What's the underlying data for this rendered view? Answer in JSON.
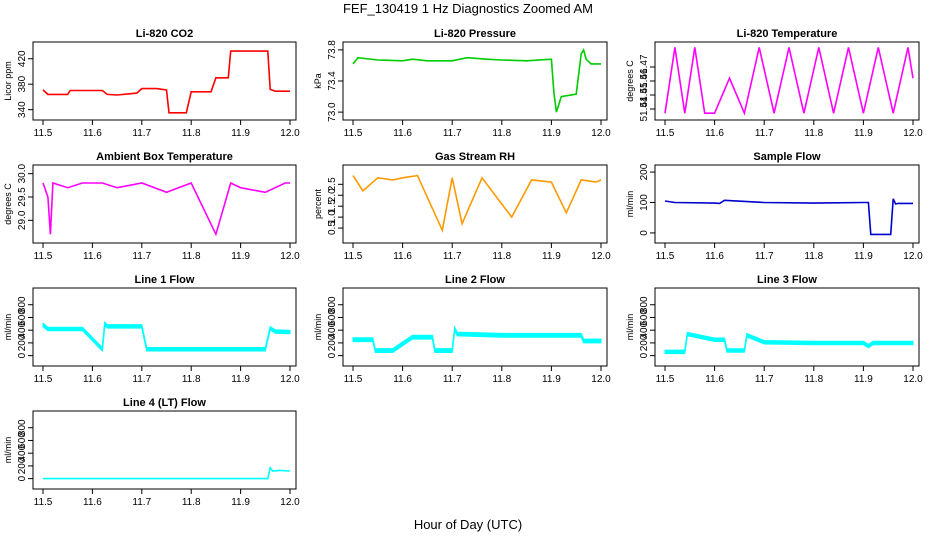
{
  "title": "FEF_130419  1 Hz Diagnostics Zoomed AM",
  "xlabel": "Hour of Day (UTC)",
  "chart_data": [
    {
      "type": "line",
      "title": "Li-820 CO2",
      "ylabel": "Licor ppm",
      "color": "#ff0000",
      "xlim": [
        11.5,
        12.0
      ],
      "ylim": [
        330,
        440
      ],
      "xticks": [
        "11.5",
        "11.6",
        "11.7",
        "11.8",
        "11.9",
        "12.0"
      ],
      "yticks": [
        340,
        380,
        420
      ],
      "x": [
        11.5,
        11.51,
        11.52,
        11.55,
        11.555,
        11.62,
        11.63,
        11.65,
        11.69,
        11.7,
        11.73,
        11.75,
        11.755,
        11.79,
        11.8,
        11.84,
        11.85,
        11.875,
        11.88,
        11.955,
        11.96,
        11.97,
        12.0
      ],
      "y": [
        371,
        364,
        364,
        364,
        370,
        370,
        364,
        363,
        366,
        373,
        373,
        371,
        335,
        335,
        368,
        368,
        390,
        390,
        432,
        432,
        372,
        369,
        369
      ]
    },
    {
      "type": "line",
      "title": "Li-820 Pressure",
      "ylabel": "kPa",
      "color": "#00cc00",
      "xlim": [
        11.5,
        12.0
      ],
      "ylim": [
        72.95,
        73.85
      ],
      "xticks": [
        "11.5",
        "11.6",
        "11.7",
        "11.8",
        "11.9",
        "12.0"
      ],
      "yticks": [
        "73.0",
        "73.4",
        "73.8"
      ],
      "x": [
        11.5,
        11.51,
        11.55,
        11.6,
        11.62,
        11.65,
        11.7,
        11.73,
        11.77,
        11.8,
        11.85,
        11.9,
        11.905,
        11.91,
        11.92,
        11.95,
        11.96,
        11.965,
        11.97,
        11.98,
        12.0
      ],
      "y": [
        73.62,
        73.7,
        73.67,
        73.66,
        73.68,
        73.66,
        73.66,
        73.7,
        73.68,
        73.67,
        73.66,
        73.68,
        73.25,
        73.0,
        73.2,
        73.23,
        73.75,
        73.8,
        73.68,
        73.62,
        73.62
      ]
    },
    {
      "type": "line",
      "title": "Li-820 Temperature",
      "ylabel": "degrees C",
      "color": "#ff00ff",
      "xlim": [
        11.5,
        12.0
      ],
      "ylim": [
        51.435,
        51.485
      ],
      "xticks": [
        "11.5",
        "11.6",
        "11.7",
        "11.8",
        "11.9",
        "12.0"
      ],
      "yticks": [
        "51.44",
        "51.45",
        "51.46",
        "51.47"
      ],
      "x": [
        11.5,
        11.52,
        11.54,
        11.56,
        11.58,
        11.6,
        11.63,
        11.66,
        11.69,
        11.72,
        11.75,
        11.78,
        11.81,
        11.84,
        11.87,
        11.9,
        11.93,
        11.96,
        11.99,
        12.0
      ],
      "y": [
        51.437,
        51.484,
        51.437,
        51.484,
        51.437,
        51.437,
        51.462,
        51.437,
        51.484,
        51.437,
        51.484,
        51.437,
        51.484,
        51.437,
        51.484,
        51.437,
        51.484,
        51.437,
        51.484,
        51.462
      ]
    },
    {
      "type": "line",
      "title": "Ambient Box Temperature",
      "ylabel": "degrees C",
      "color": "#ff00ff",
      "xlim": [
        11.5,
        12.0
      ],
      "ylim": [
        28.6,
        30.1
      ],
      "xticks": [
        "11.5",
        "11.6",
        "11.7",
        "11.8",
        "11.9",
        "12.0"
      ],
      "yticks": [
        "29.0",
        "29.5",
        "30.0"
      ],
      "x": [
        11.5,
        11.51,
        11.515,
        11.52,
        11.55,
        11.58,
        11.62,
        11.65,
        11.7,
        11.75,
        11.8,
        11.85,
        11.88,
        11.9,
        11.95,
        11.99,
        12.0
      ],
      "y": [
        29.8,
        29.5,
        28.7,
        29.8,
        29.7,
        29.8,
        29.8,
        29.7,
        29.8,
        29.6,
        29.8,
        28.7,
        29.8,
        29.7,
        29.6,
        29.8,
        29.8
      ]
    },
    {
      "type": "line",
      "title": "Gas Stream RH",
      "ylabel": "percent",
      "color": "#ff9900",
      "xlim": [
        11.5,
        12.0
      ],
      "ylim": [
        0.0,
        3.2
      ],
      "xticks": [
        "11.5",
        "11.6",
        "11.7",
        "11.8",
        "11.9",
        "12.0"
      ],
      "yticks": [
        "0.5",
        "1.0",
        "1.5",
        "2.0",
        "2.5"
      ],
      "x": [
        11.5,
        11.52,
        11.55,
        11.58,
        11.6,
        11.63,
        11.68,
        11.7,
        11.72,
        11.76,
        11.82,
        11.86,
        11.9,
        11.93,
        11.96,
        11.99,
        12.0
      ],
      "y": [
        2.9,
        2.2,
        2.8,
        2.7,
        2.8,
        2.9,
        0.4,
        2.8,
        0.7,
        2.8,
        1.0,
        2.7,
        2.6,
        1.2,
        2.7,
        2.6,
        2.7
      ]
    },
    {
      "type": "line",
      "title": "Sample Flow",
      "ylabel": "ml/min",
      "color": "#0000cc",
      "xlim": [
        11.5,
        12.0
      ],
      "ylim": [
        -20,
        210
      ],
      "xticks": [
        "11.5",
        "11.6",
        "11.7",
        "11.8",
        "11.9",
        "12.0"
      ],
      "yticks": [
        0,
        100,
        200
      ],
      "x": [
        11.5,
        11.52,
        11.6,
        11.61,
        11.62,
        11.7,
        11.8,
        11.9,
        11.91,
        11.915,
        11.955,
        11.96,
        11.965,
        11.97,
        12.0
      ],
      "y": [
        105,
        100,
        98,
        97,
        107,
        100,
        98,
        100,
        100,
        -5,
        -5,
        112,
        95,
        97,
        97
      ]
    },
    {
      "type": "line",
      "title": "Line 1 Flow",
      "ylabel": "ml/min",
      "color": "#00ffff",
      "xlim": [
        11.5,
        12.0
      ],
      "ylim": [
        -100,
        1000
      ],
      "xticks": [
        "11.5",
        "11.6",
        "11.7",
        "11.8",
        "11.9",
        "12.0"
      ],
      "yticks": [
        0,
        200,
        400,
        600,
        800
      ],
      "x": [
        11.5,
        11.51,
        11.58,
        11.62,
        11.625,
        11.63,
        11.7,
        11.71,
        11.85,
        11.95,
        11.96,
        11.97,
        12.0
      ],
      "y": [
        480,
        420,
        420,
        100,
        500,
        460,
        460,
        100,
        100,
        100,
        430,
        380,
        370
      ],
      "band": 55
    },
    {
      "type": "line",
      "title": "Line 2 Flow",
      "ylabel": "ml/min",
      "color": "#00ffff",
      "xlim": [
        11.5,
        12.0
      ],
      "ylim": [
        -100,
        1000
      ],
      "xticks": [
        "11.5",
        "11.6",
        "11.7",
        "11.8",
        "11.9",
        "12.0"
      ],
      "yticks": [
        0,
        200,
        400,
        600,
        800
      ],
      "x": [
        11.5,
        11.54,
        11.545,
        11.58,
        11.62,
        11.66,
        11.665,
        11.7,
        11.705,
        11.71,
        11.8,
        11.9,
        11.96,
        11.965,
        11.97,
        12.0
      ],
      "y": [
        250,
        250,
        80,
        80,
        290,
        290,
        80,
        80,
        420,
        340,
        320,
        320,
        320,
        230,
        230,
        230
      ],
      "band": 60
    },
    {
      "type": "line",
      "title": "Line 3 Flow",
      "ylabel": "ml/min",
      "color": "#00ffff",
      "xlim": [
        11.5,
        12.0
      ],
      "ylim": [
        -100,
        1000
      ],
      "xticks": [
        "11.5",
        "11.6",
        "11.7",
        "11.8",
        "11.9",
        "12.0"
      ],
      "yticks": [
        0,
        200,
        400,
        600,
        800
      ],
      "x": [
        11.5,
        11.54,
        11.545,
        11.6,
        11.62,
        11.625,
        11.66,
        11.665,
        11.7,
        11.8,
        11.9,
        11.91,
        11.92,
        12.0
      ],
      "y": [
        60,
        60,
        340,
        250,
        250,
        80,
        80,
        320,
        210,
        200,
        200,
        150,
        200,
        200
      ],
      "band": 55
    },
    {
      "type": "line",
      "title": "Line 4 (LT) Flow",
      "ylabel": "ml/min",
      "color": "#00ffff",
      "xlim": [
        11.5,
        12.0
      ],
      "ylim": [
        -100,
        1000
      ],
      "xticks": [
        "11.5",
        "11.6",
        "11.7",
        "11.8",
        "11.9",
        "12.0"
      ],
      "yticks": [
        0,
        200,
        400,
        600,
        800
      ],
      "x": [
        11.5,
        11.7,
        11.955,
        11.96,
        11.965,
        11.98,
        12.0
      ],
      "y": [
        0,
        0,
        0,
        170,
        120,
        130,
        120
      ]
    }
  ]
}
